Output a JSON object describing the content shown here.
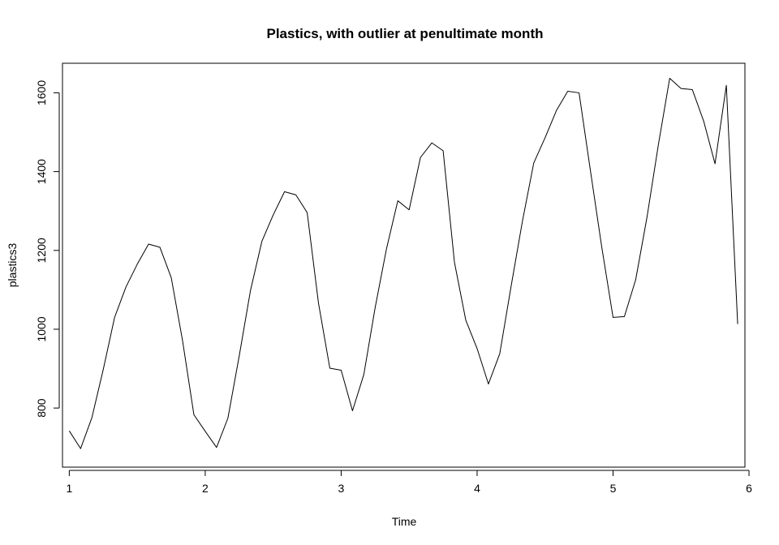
{
  "chart_data": {
    "type": "line",
    "title": "Plastics, with outlier at penultimate month",
    "xlabel": "Time",
    "ylabel": "plastics3",
    "xlim": [
      0.95,
      5.97
    ],
    "ylim": [
      650,
      1675
    ],
    "xticks": [
      1,
      2,
      3,
      4,
      5,
      6
    ],
    "yticks": [
      800,
      1000,
      1200,
      1400,
      1600
    ],
    "grid": false,
    "series": [
      {
        "color": "#000000",
        "x": [
          1.0,
          1.0833,
          1.1667,
          1.25,
          1.3333,
          1.4167,
          1.5,
          1.5833,
          1.6667,
          1.75,
          1.8333,
          1.9167,
          2.0,
          2.0833,
          2.1667,
          2.25,
          2.3333,
          2.4167,
          2.5,
          2.5833,
          2.6667,
          2.75,
          2.8333,
          2.9167,
          3.0,
          3.0833,
          3.1667,
          3.25,
          3.3333,
          3.4167,
          3.5,
          3.5833,
          3.6667,
          3.75,
          3.8333,
          3.9167,
          4.0,
          4.0833,
          4.1667,
          4.25,
          4.3333,
          4.4167,
          4.5,
          4.5833,
          4.6667,
          4.75,
          4.8333,
          4.9167,
          5.0,
          5.0833,
          5.1667,
          5.25,
          5.3333,
          5.4167,
          5.5,
          5.5833,
          5.6667,
          5.75,
          5.8333,
          5.9167
        ],
        "values": [
          742,
          697,
          776,
          898,
          1030,
          1107,
          1165,
          1216,
          1208,
          1131,
          971,
          783,
          741,
          700,
          774,
          932,
          1099,
          1223,
          1290,
          1349,
          1341,
          1296,
          1066,
          901,
          896,
          793,
          885,
          1055,
          1204,
          1326,
          1303,
          1436,
          1473,
          1453,
          1170,
          1023,
          951,
          861,
          938,
          1109,
          1274,
          1422,
          1486,
          1555,
          1604,
          1600,
          1403,
          1209,
          1030,
          1032,
          1126,
          1285,
          1468,
          1637,
          1611,
          1608,
          1528,
          1420,
          1619,
          1013
        ]
      }
    ]
  }
}
